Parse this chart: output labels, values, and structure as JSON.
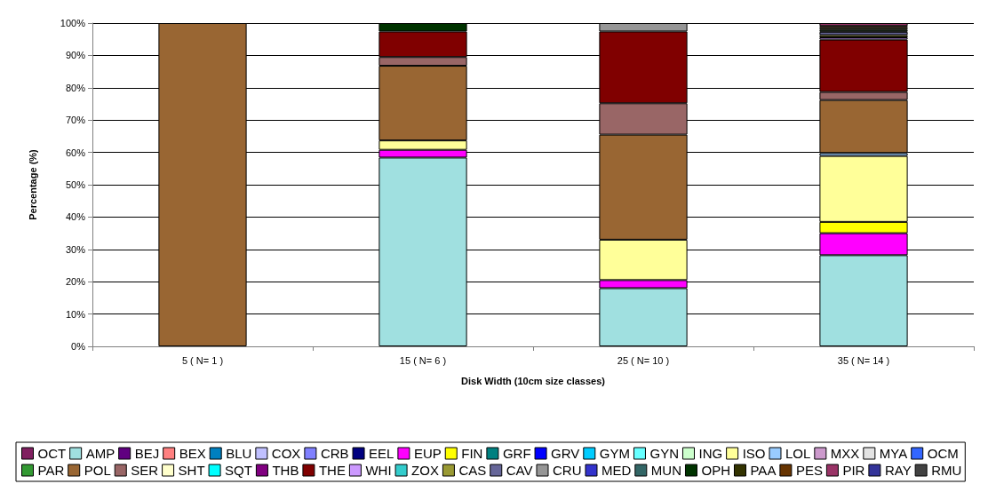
{
  "chart_data": {
    "type": "bar",
    "stacked": true,
    "xlabel": "Disk Width (10cm size classes)",
    "ylabel": "Percentage (%)",
    "categories": [
      "5 ( N= 1 )",
      "15 ( N= 6 )",
      "25 ( N= 10 )",
      "35 ( N= 14 )"
    ],
    "ylim": [
      0,
      100
    ],
    "yticks": [
      {
        "value": 0,
        "label": "0%"
      },
      {
        "value": 10,
        "label": "10%"
      },
      {
        "value": 20,
        "label": "20%"
      },
      {
        "value": 30,
        "label": "30%"
      },
      {
        "value": 40,
        "label": "40%"
      },
      {
        "value": 50,
        "label": "50%"
      },
      {
        "value": 60,
        "label": "60%"
      },
      {
        "value": 70,
        "label": "70%"
      },
      {
        "value": 80,
        "label": "80%"
      },
      {
        "value": 90,
        "label": "90%"
      },
      {
        "value": 100,
        "label": "100%"
      }
    ],
    "grid": "y",
    "legend": "bottom",
    "series": [
      {
        "name": "OCT",
        "color": "#802060",
        "values": [
          null,
          null,
          null,
          null
        ]
      },
      {
        "name": "AMP",
        "color": "#a0e0e0",
        "values": [
          null,
          58.4,
          18,
          28.2
        ]
      },
      {
        "name": "BEJ",
        "color": "#600080",
        "values": [
          null,
          null,
          null,
          null
        ]
      },
      {
        "name": "BEX",
        "color": "#ff8080",
        "values": [
          null,
          null,
          null,
          null
        ]
      },
      {
        "name": "BLU",
        "color": "#0080c0",
        "values": [
          null,
          null,
          null,
          null
        ]
      },
      {
        "name": "COX",
        "color": "#c0c0ff",
        "values": [
          null,
          null,
          null,
          null
        ]
      },
      {
        "name": "CRB",
        "color": "#8080ff",
        "values": [
          null,
          null,
          null,
          null
        ]
      },
      {
        "name": "EEL",
        "color": "#000080",
        "values": [
          null,
          null,
          null,
          null
        ]
      },
      {
        "name": "EUP",
        "color": "#ff00ff",
        "values": [
          null,
          2.4,
          2.5,
          6.8
        ]
      },
      {
        "name": "FIN",
        "color": "#ffff00",
        "values": [
          null,
          null,
          null,
          3.5
        ]
      },
      {
        "name": "GRF",
        "color": "#008080",
        "values": [
          null,
          null,
          null,
          null
        ]
      },
      {
        "name": "GRV",
        "color": "#0000ff",
        "values": [
          null,
          null,
          null,
          null
        ]
      },
      {
        "name": "GYM",
        "color": "#00ccff",
        "values": [
          null,
          null,
          null,
          null
        ]
      },
      {
        "name": "GYN",
        "color": "#66ffff",
        "values": [
          null,
          null,
          null,
          null
        ]
      },
      {
        "name": "ING",
        "color": "#ccffcc",
        "values": [
          null,
          null,
          null,
          null
        ]
      },
      {
        "name": "ISO",
        "color": "#ffff99",
        "values": [
          null,
          2.9,
          12.5,
          20.4
        ]
      },
      {
        "name": "LOL",
        "color": "#99ccff",
        "values": [
          null,
          null,
          null,
          0.9
        ]
      },
      {
        "name": "MXX",
        "color": "#cc99cc",
        "values": [
          null,
          null,
          null,
          null
        ]
      },
      {
        "name": "MYA",
        "color": "#e3e3e3",
        "values": [
          null,
          null,
          null,
          null
        ]
      },
      {
        "name": "OCM",
        "color": "#3366ff",
        "values": [
          null,
          null,
          null,
          null
        ]
      },
      {
        "name": "PAR",
        "color": "#339933",
        "values": [
          null,
          null,
          null,
          null
        ]
      },
      {
        "name": "POL",
        "color": "#996633",
        "values": [
          100,
          23.1,
          32.5,
          16.4
        ]
      },
      {
        "name": "SER",
        "color": "#996666",
        "values": [
          null,
          2.7,
          9.7,
          2.5
        ]
      },
      {
        "name": "SHT",
        "color": "#ffffcc",
        "values": [
          null,
          null,
          null,
          null
        ]
      },
      {
        "name": "SQT",
        "color": "#00ffff",
        "values": [
          null,
          null,
          null,
          null
        ]
      },
      {
        "name": "THB",
        "color": "#800080",
        "values": [
          null,
          null,
          null,
          null
        ]
      },
      {
        "name": "THE",
        "color": "#800000",
        "values": [
          null,
          7.9,
          22.2,
          16.2
        ]
      },
      {
        "name": "WHI",
        "color": "#cc99ff",
        "values": [
          null,
          null,
          null,
          0.7
        ]
      },
      {
        "name": "ZOX",
        "color": "#33cccc",
        "values": [
          null,
          null,
          null,
          null
        ]
      },
      {
        "name": "CAS",
        "color": "#999933",
        "values": [
          null,
          null,
          null,
          0.7
        ]
      },
      {
        "name": "CAV",
        "color": "#666699",
        "values": [
          null,
          null,
          null,
          1
        ]
      },
      {
        "name": "CRU",
        "color": "#969696",
        "values": [
          null,
          null,
          2.6,
          null
        ]
      },
      {
        "name": "MED",
        "color": "#3333cc",
        "values": [
          null,
          null,
          null,
          null
        ]
      },
      {
        "name": "MUN",
        "color": "#336666",
        "values": [
          null,
          null,
          null,
          null
        ]
      },
      {
        "name": "OPH",
        "color": "#003300",
        "values": [
          null,
          2.6,
          null,
          0.6
        ]
      },
      {
        "name": "PAA",
        "color": "#333300",
        "values": [
          null,
          null,
          null,
          0.6
        ]
      },
      {
        "name": "PES",
        "color": "#663300",
        "values": [
          null,
          null,
          null,
          0.6
        ]
      },
      {
        "name": "PIR",
        "color": "#993366",
        "values": [
          null,
          null,
          null,
          0.9
        ]
      },
      {
        "name": "RAY",
        "color": "#333399",
        "values": [
          null,
          null,
          null,
          null
        ]
      },
      {
        "name": "RMU",
        "color": "#424242",
        "values": [
          null,
          null,
          null,
          null
        ]
      }
    ]
  }
}
